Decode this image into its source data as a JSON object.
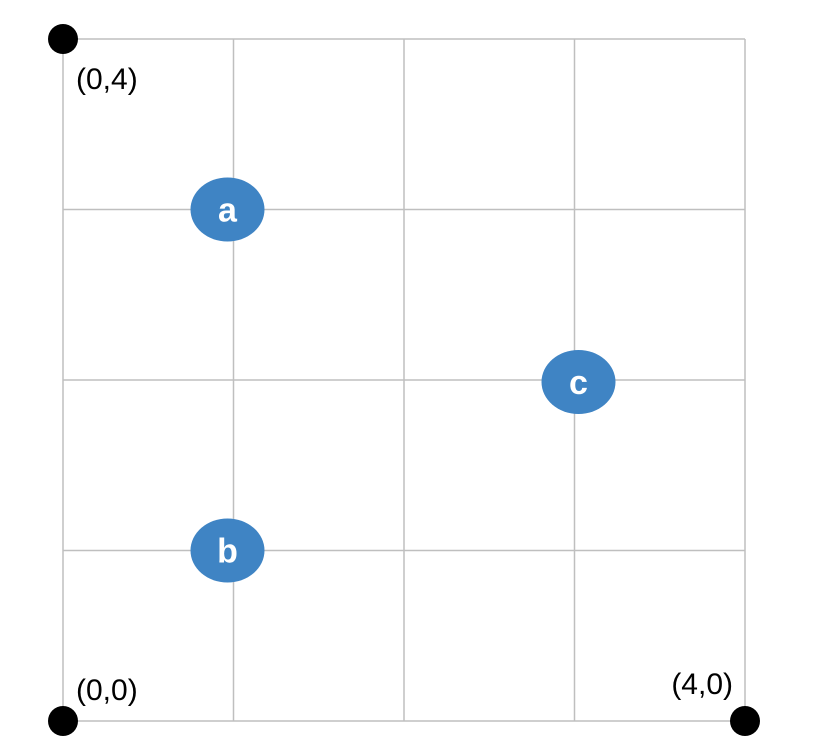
{
  "grid": {
    "x_range": [
      0,
      4
    ],
    "y_range": [
      0,
      4
    ],
    "line_color": "#bfbfbf"
  },
  "corners": [
    {
      "x": 0,
      "y": 4,
      "label": "(0,4)"
    },
    {
      "x": 0,
      "y": 0,
      "label": "(0,0)"
    },
    {
      "x": 4,
      "y": 0,
      "label": "(4,0)"
    }
  ],
  "nodes": [
    {
      "label": "a",
      "x": 1,
      "y": 3,
      "color": "#3f84c4"
    },
    {
      "label": "b",
      "x": 1,
      "y": 1,
      "color": "#3f84c4"
    },
    {
      "label": "c",
      "x": 3,
      "y": 2,
      "color": "#3f84c4"
    }
  ],
  "colors": {
    "corner_dot": "#000000",
    "node_fill": "#3f84c4",
    "node_text": "#ffffff"
  }
}
